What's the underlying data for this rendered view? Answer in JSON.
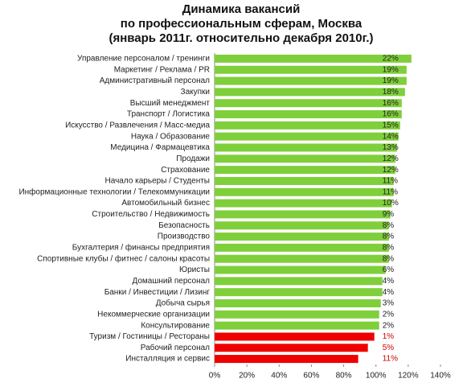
{
  "chart_data": {
    "type": "hbar",
    "title": [
      "Динамика вакансий",
      "по профессиональным сферам, Москва",
      "(январь 2011г. относительно декабря 2010г.)"
    ],
    "categories": [
      "Управление персоналом / тренинги",
      "Маркетинг / Реклама / PR",
      "Административный персонал",
      "Закупки",
      "Высший менеджмент",
      "Транспорт / Логистика",
      "Искусство / Развлечения / Масс-медиа",
      "Наука / Образование",
      "Медицина / Фармацевтика",
      "Продажи",
      "Страхование",
      "Начало карьеры / Студенты",
      "Информационные технологии / Телекоммуникации",
      "Автомобильный бизнес",
      "Строительство / Недвижимость",
      "Безопасность",
      "Производство",
      "Бухгалтерия / финансы предприятия",
      "Спортивные клубы / фитнес / салоны красоты",
      "Юристы",
      "Домашний персонал",
      "Банки / Инвестиции / Лизинг",
      "Добыча сырья",
      "Некоммерческие организации",
      "Консультирование",
      "Туризм / Гостиницы / Рестораны",
      "Рабочий персонал",
      "Инсталляция и сервис"
    ],
    "values": [
      122,
      119,
      119,
      118,
      116,
      116,
      115,
      114,
      113,
      112,
      112,
      111,
      111,
      110,
      109,
      108,
      108,
      108,
      108,
      106,
      104,
      104,
      103,
      102,
      102,
      99,
      95,
      89
    ],
    "annotations": [
      "22%",
      "19%",
      "19%",
      "18%",
      "16%",
      "16%",
      "15%",
      "14%",
      "13%",
      "12%",
      "12%",
      "11%",
      "11%",
      "10%",
      "9%",
      "8%",
      "8%",
      "8%",
      "8%",
      "6%",
      "4%",
      "4%",
      "3%",
      "2%",
      "2%",
      "1%",
      "5%",
      "11%"
    ],
    "colors": [
      "#7fcf3a",
      "#7fcf3a",
      "#7fcf3a",
      "#7fcf3a",
      "#7fcf3a",
      "#7fcf3a",
      "#7fcf3a",
      "#7fcf3a",
      "#7fcf3a",
      "#7fcf3a",
      "#7fcf3a",
      "#7fcf3a",
      "#7fcf3a",
      "#7fcf3a",
      "#7fcf3a",
      "#7fcf3a",
      "#7fcf3a",
      "#7fcf3a",
      "#7fcf3a",
      "#7fcf3a",
      "#7fcf3a",
      "#7fcf3a",
      "#7fcf3a",
      "#7fcf3a",
      "#7fcf3a",
      "#ee0000",
      "#ee0000",
      "#ee0000"
    ],
    "xlim": [
      0,
      140
    ],
    "xticks": [
      {
        "value": 0,
        "label": "0%"
      },
      {
        "value": 20,
        "label": "20%"
      },
      {
        "value": 40,
        "label": "40%"
      },
      {
        "value": 60,
        "label": "60%"
      },
      {
        "value": 80,
        "label": "80%"
      },
      {
        "value": 100,
        "label": "100%"
      },
      {
        "value": 120,
        "label": "120%"
      },
      {
        "value": 140,
        "label": "140%"
      }
    ]
  }
}
